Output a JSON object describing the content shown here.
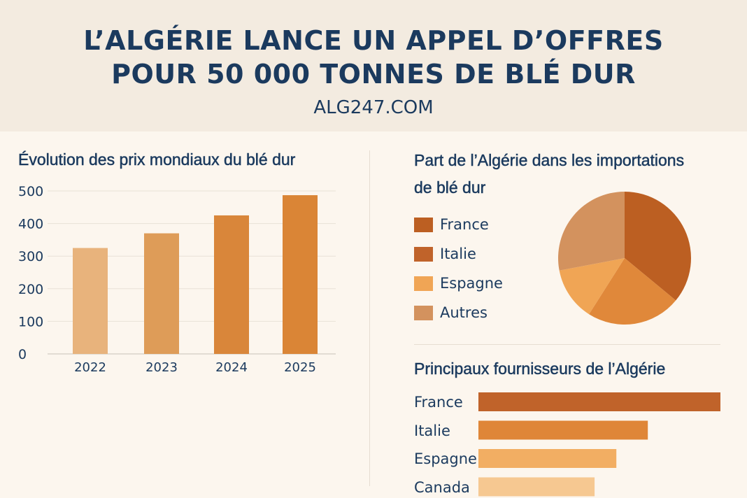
{
  "header": {
    "title_line1": "L’ALGÉRIE LANCE UN APPEL D’OFFRES",
    "title_line2": "POUR 50 000 TONNES DE BLÉ DUR",
    "site": "ALG247.COM"
  },
  "colors": {
    "header_bg": "#f3ebe0",
    "page_bg": "#fcf6ee",
    "text": "#1b3a5e"
  },
  "chart_data": [
    {
      "type": "bar",
      "title": "Évolution des prix mondiaux du blé dur",
      "categories": [
        "2022",
        "2023",
        "2024",
        "2025"
      ],
      "values": [
        325,
        370,
        425,
        487
      ],
      "colors": [
        "#e8b37c",
        "#de9c58",
        "#d9863a",
        "#da8536"
      ],
      "ylim": [
        0,
        500
      ],
      "yticks": [
        "0",
        "100",
        "200",
        "300",
        "400",
        "500"
      ],
      "grid": true
    },
    {
      "type": "pie",
      "title": "Part de l’Algérie dans les importations de blé dur",
      "title_line1": "Part de l’Algérie dans les importations",
      "title_line2": "de blé dur",
      "labels": [
        "France",
        "Italie",
        "Espagne",
        "Autres"
      ],
      "values": [
        36,
        23,
        13,
        28
      ],
      "colors": [
        "#bc5f22",
        "#e0883a",
        "#f0a555",
        "#d3925e"
      ],
      "legend_colors": [
        "#bc5f22",
        "#c0632a",
        "#f0a555",
        "#d3925e"
      ],
      "legend": "left"
    },
    {
      "type": "bar",
      "orientation": "horizontal",
      "title": "Principaux fournisseurs de l’Algérie",
      "categories": [
        "France",
        "Italie",
        "Espagne",
        "Canada"
      ],
      "values": [
        100,
        70,
        57,
        48
      ],
      "colors": [
        "#c0632a",
        "#df8638",
        "#f2ae63",
        "#f6c891"
      ]
    }
  ]
}
